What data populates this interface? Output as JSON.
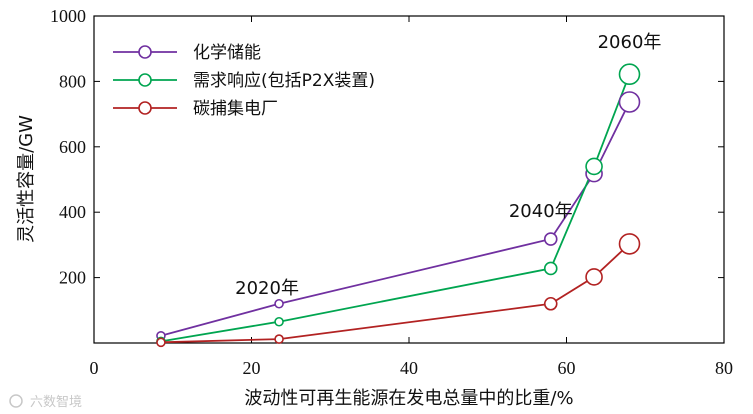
{
  "chart_data": {
    "type": "line",
    "xlabel": "波动性可再生能源在发电总量中的比重/%",
    "ylabel": "灵活性容量/GW",
    "xlim": [
      0,
      80
    ],
    "ylim": [
      0,
      1000
    ],
    "xticks": [
      0,
      20,
      40,
      60,
      80
    ],
    "yticks": [
      200,
      400,
      600,
      800,
      1000
    ],
    "x_tick_labels": [
      "0",
      "20",
      "40",
      "60",
      "80"
    ],
    "y_tick_labels": [
      "200",
      "400",
      "600",
      "800",
      "1000"
    ],
    "legend_position": "top-left",
    "grid": false,
    "series": [
      {
        "name": "化学储能",
        "color": "#7030A0",
        "points": [
          {
            "x": 8.5,
            "y": 22
          },
          {
            "x": 23.5,
            "y": 120
          },
          {
            "x": 58,
            "y": 318
          },
          {
            "x": 63.5,
            "y": 518
          },
          {
            "x": 68,
            "y": 737
          }
        ]
      },
      {
        "name": "需求响应(包括P2X装置)",
        "color": "#00A550",
        "points": [
          {
            "x": 8.5,
            "y": 5
          },
          {
            "x": 23.5,
            "y": 65
          },
          {
            "x": 58,
            "y": 228
          },
          {
            "x": 63.5,
            "y": 540
          },
          {
            "x": 68,
            "y": 822
          }
        ]
      },
      {
        "name": "碳捕集电厂",
        "color": "#B22222",
        "points": [
          {
            "x": 8.5,
            "y": 2
          },
          {
            "x": 23.5,
            "y": 12
          },
          {
            "x": 58,
            "y": 120
          },
          {
            "x": 63.5,
            "y": 202
          },
          {
            "x": 68,
            "y": 303
          }
        ]
      }
    ],
    "annotations": [
      {
        "text": "2020年",
        "x": 23.5
      },
      {
        "text": "2040年",
        "x": 58
      },
      {
        "text": "2060年",
        "x": 68
      }
    ]
  },
  "watermark": {
    "text": "六数智境"
  }
}
